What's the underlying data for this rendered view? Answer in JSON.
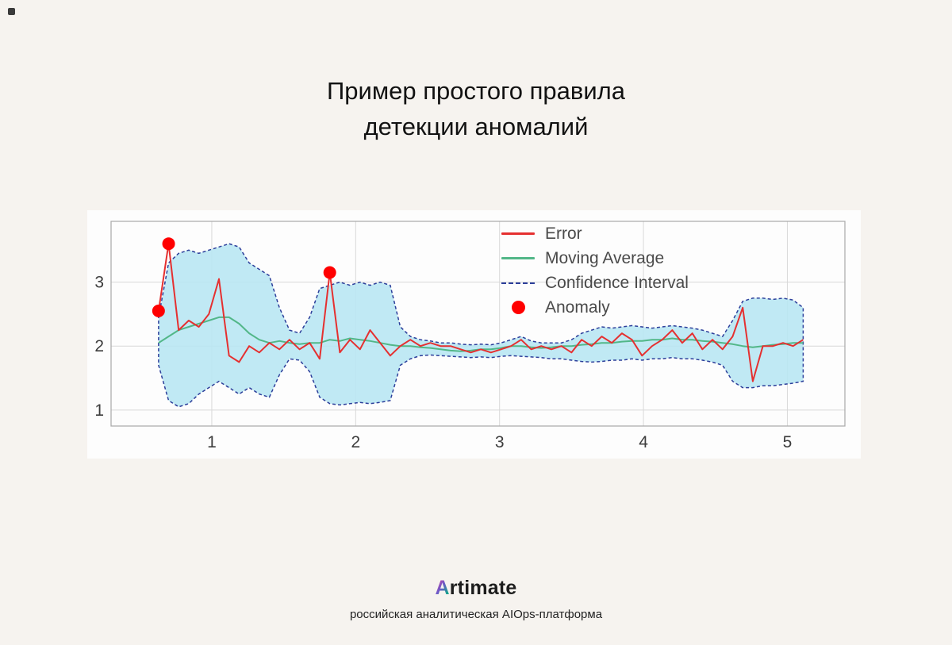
{
  "page": {
    "background": "#f6f3ef",
    "title_line1": "Пример простого правила",
    "title_line2": "детекции аномалий"
  },
  "footer": {
    "logo_first_letter": "A",
    "logo_rest": "rtimate",
    "tagline": "российская аналитическая AIOps-платформа"
  },
  "chart_data": {
    "type": "line",
    "title": "",
    "xlabel": "",
    "ylabel": "",
    "xlim": [
      0.3,
      5.4
    ],
    "ylim": [
      0.75,
      3.95
    ],
    "x_ticks": [
      1,
      2,
      3,
      4,
      5
    ],
    "y_ticks": [
      1,
      2,
      3
    ],
    "grid": true,
    "legend_position": "upper right",
    "colors": {
      "grid": "#d8d8d8",
      "frame": "#a8a8a8",
      "tick": "#3d3d3d"
    },
    "x": [
      0.63,
      0.7,
      0.77,
      0.84,
      0.91,
      0.98,
      1.05,
      1.12,
      1.19,
      1.26,
      1.33,
      1.4,
      1.47,
      1.54,
      1.61,
      1.68,
      1.75,
      1.82,
      1.89,
      1.96,
      2.03,
      2.1,
      2.17,
      2.24,
      2.31,
      2.38,
      2.45,
      2.52,
      2.59,
      2.66,
      2.73,
      2.8,
      2.87,
      2.94,
      3.01,
      3.08,
      3.15,
      3.22,
      3.29,
      3.36,
      3.43,
      3.5,
      3.57,
      3.64,
      3.71,
      3.78,
      3.85,
      3.92,
      3.99,
      4.06,
      4.13,
      4.2,
      4.27,
      4.34,
      4.41,
      4.48,
      4.55,
      4.62,
      4.69,
      4.76,
      4.83,
      4.9,
      4.97,
      5.04,
      5.11
    ],
    "series": [
      {
        "name": "Error",
        "color": "#e53030",
        "values": [
          2.55,
          3.6,
          2.25,
          2.4,
          2.3,
          2.5,
          3.05,
          1.85,
          1.75,
          2.0,
          1.9,
          2.05,
          1.95,
          2.1,
          1.95,
          2.05,
          1.8,
          3.15,
          1.9,
          2.1,
          1.95,
          2.25,
          2.05,
          1.85,
          2.0,
          2.1,
          2.0,
          2.05,
          2.0,
          2.0,
          1.95,
          1.9,
          1.95,
          1.9,
          1.95,
          2.0,
          2.1,
          1.95,
          2.0,
          1.95,
          2.0,
          1.9,
          2.1,
          2.0,
          2.15,
          2.05,
          2.2,
          2.1,
          1.85,
          2.0,
          2.1,
          2.25,
          2.05,
          2.2,
          1.95,
          2.1,
          1.95,
          2.15,
          2.6,
          1.45,
          2.0,
          2.0,
          2.05,
          2.0,
          2.1
        ]
      },
      {
        "name": "Moving Average",
        "color": "#52b788",
        "values": [
          2.05,
          2.15,
          2.25,
          2.3,
          2.35,
          2.4,
          2.45,
          2.45,
          2.35,
          2.2,
          2.1,
          2.05,
          2.08,
          2.05,
          2.03,
          2.05,
          2.05,
          2.1,
          2.08,
          2.12,
          2.1,
          2.08,
          2.05,
          2.02,
          2.0,
          2.0,
          1.98,
          1.97,
          1.95,
          1.93,
          1.92,
          1.93,
          1.95,
          1.95,
          1.97,
          2.0,
          2.0,
          1.98,
          1.97,
          1.98,
          2.0,
          2.0,
          2.02,
          2.03,
          2.05,
          2.05,
          2.07,
          2.08,
          2.08,
          2.1,
          2.1,
          2.12,
          2.1,
          2.1,
          2.08,
          2.07,
          2.05,
          2.03,
          2.0,
          1.98,
          2.0,
          2.02,
          2.03,
          2.05,
          2.05
        ]
      }
    ],
    "confidence_interval": {
      "name": "Confidence Interval",
      "fill": "#b9e7f3",
      "edge": "#2c3e9a",
      "upper": [
        2.45,
        3.3,
        3.45,
        3.5,
        3.45,
        3.5,
        3.55,
        3.6,
        3.55,
        3.3,
        3.2,
        3.1,
        2.6,
        2.25,
        2.2,
        2.45,
        2.9,
        2.95,
        3.0,
        2.95,
        3.0,
        2.95,
        3.0,
        2.95,
        2.3,
        2.15,
        2.1,
        2.08,
        2.05,
        2.05,
        2.03,
        2.02,
        2.03,
        2.02,
        2.05,
        2.1,
        2.15,
        2.08,
        2.05,
        2.05,
        2.05,
        2.1,
        2.2,
        2.25,
        2.3,
        2.28,
        2.3,
        2.32,
        2.3,
        2.28,
        2.3,
        2.32,
        2.3,
        2.28,
        2.25,
        2.2,
        2.15,
        2.4,
        2.7,
        2.75,
        2.75,
        2.73,
        2.75,
        2.72,
        2.6
      ],
      "lower": [
        1.7,
        1.15,
        1.05,
        1.1,
        1.25,
        1.35,
        1.45,
        1.35,
        1.25,
        1.35,
        1.25,
        1.2,
        1.55,
        1.8,
        1.78,
        1.6,
        1.2,
        1.1,
        1.08,
        1.1,
        1.12,
        1.1,
        1.12,
        1.15,
        1.7,
        1.8,
        1.85,
        1.86,
        1.85,
        1.84,
        1.83,
        1.82,
        1.83,
        1.82,
        1.84,
        1.85,
        1.84,
        1.83,
        1.82,
        1.8,
        1.8,
        1.78,
        1.76,
        1.75,
        1.76,
        1.78,
        1.78,
        1.8,
        1.78,
        1.8,
        1.8,
        1.82,
        1.8,
        1.8,
        1.78,
        1.75,
        1.7,
        1.45,
        1.35,
        1.35,
        1.38,
        1.38,
        1.4,
        1.42,
        1.45
      ]
    },
    "anomalies": {
      "name": "Anomaly",
      "color": "#ff0000",
      "points": [
        {
          "x": 0.63,
          "y": 2.55
        },
        {
          "x": 0.7,
          "y": 3.6
        },
        {
          "x": 1.82,
          "y": 3.15
        }
      ]
    },
    "legend": [
      {
        "label": "Error",
        "swatch": "line",
        "color": "#e53030"
      },
      {
        "label": "Moving Average",
        "swatch": "line",
        "color": "#52b788"
      },
      {
        "label": "Confidence Interval",
        "swatch": "dashed",
        "color": "#2c3e9a"
      },
      {
        "label": "Anomaly",
        "swatch": "dot",
        "color": "#ff0000"
      }
    ]
  }
}
